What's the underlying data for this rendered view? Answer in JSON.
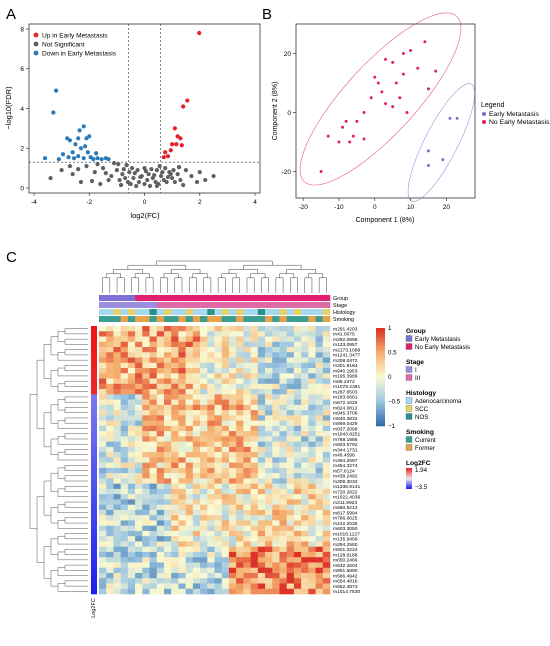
{
  "colors": {
    "up": "#e8202a",
    "ns": "#606060",
    "down": "#2a7ab8",
    "early": "#7e6fd6",
    "noearly": "#e0206e",
    "stage_i": "#9a8ee0",
    "stage_ii": "#e06aa8",
    "hist_adeno": "#a6d8ee",
    "hist_scc": "#e8d26a",
    "hist_nos": "#2a8f86",
    "smoke_current": "#3a9f8f",
    "smoke_former": "#e8a24a",
    "l2fc_high": "#e8202a",
    "l2fc_low": "#2a2ae0"
  },
  "panels": {
    "a": "A",
    "b": "B",
    "c": "C"
  },
  "chart_data": [
    {
      "type": "scatter",
      "id": "volcano",
      "xlabel": "log2(FC)",
      "ylabel": "−log10(FDR)",
      "xlim": [
        -4,
        4
      ],
      "ylim": [
        0,
        8
      ],
      "x_ticks": [
        "-4",
        "-2",
        "0",
        "2",
        "4"
      ],
      "y_ticks": [
        "0",
        "2",
        "4",
        "6",
        "8"
      ],
      "thresholds": {
        "x": [
          -0.58,
          0.58
        ],
        "y": 1.3
      },
      "legend": [
        "Up in Early Metastasis",
        "Not Significant",
        "Down in Early Metastasis"
      ],
      "series": [
        {
          "name": "Up in Early Metastasis",
          "points": [
            [
              1.98,
              7.8
            ],
            [
              1.55,
              4.4
            ],
            [
              1.4,
              4.1
            ],
            [
              1.1,
              3.0
            ],
            [
              1.2,
              2.6
            ],
            [
              1.3,
              2.5
            ],
            [
              1.0,
              2.2
            ],
            [
              1.15,
              2.2
            ],
            [
              1.35,
              2.15
            ],
            [
              0.95,
              1.9
            ],
            [
              0.75,
              1.8
            ],
            [
              0.85,
              1.6
            ],
            [
              0.7,
              1.55
            ]
          ]
        },
        {
          "name": "Down in Early Metastasis",
          "points": [
            [
              -3.2,
              4.9
            ],
            [
              -3.3,
              3.8
            ],
            [
              -2.2,
              3.1
            ],
            [
              -2.35,
              2.9
            ],
            [
              -3.6,
              1.5
            ],
            [
              -2.8,
              2.5
            ],
            [
              -2.1,
              2.5
            ],
            [
              -2.0,
              2.6
            ],
            [
              -2.7,
              2.4
            ],
            [
              -2.4,
              2.5
            ],
            [
              -2.5,
              2.2
            ],
            [
              -2.3,
              2.0
            ],
            [
              -2.15,
              2.1
            ],
            [
              -2.95,
              1.7
            ],
            [
              -2.75,
              1.55
            ],
            [
              -2.55,
              1.5
            ],
            [
              -2.4,
              1.6
            ],
            [
              -2.2,
              1.5
            ],
            [
              -1.95,
              1.55
            ],
            [
              -1.85,
              1.45
            ],
            [
              -1.7,
              1.5
            ],
            [
              -1.55,
              1.45
            ],
            [
              -1.4,
              1.5
            ],
            [
              -1.3,
              1.45
            ],
            [
              -2.05,
              1.8
            ],
            [
              -1.75,
              1.75
            ],
            [
              -3.1,
              1.45
            ],
            [
              -2.6,
              1.8
            ]
          ]
        },
        {
          "name": "Not Significant",
          "points": [
            [
              -3.0,
              0.9
            ],
            [
              -2.6,
              0.7
            ],
            [
              -2.1,
              1.1
            ],
            [
              -1.8,
              0.8
            ],
            [
              -1.5,
              1.0
            ],
            [
              -1.2,
              0.6
            ],
            [
              -1.0,
              0.9
            ],
            [
              -0.9,
              0.4
            ],
            [
              -0.8,
              0.7
            ],
            [
              -0.7,
              0.5
            ],
            [
              -0.6,
              0.3
            ],
            [
              -0.5,
              0.2
            ],
            [
              -0.4,
              0.5
            ],
            [
              -0.3,
              0.1
            ],
            [
              -0.2,
              0.3
            ],
            [
              -0.1,
              0.6
            ],
            [
              0.0,
              0.2
            ],
            [
              0.1,
              0.4
            ],
            [
              0.2,
              0.1
            ],
            [
              0.3,
              0.5
            ],
            [
              0.4,
              0.3
            ],
            [
              0.5,
              0.2
            ],
            [
              0.6,
              0.6
            ],
            [
              0.7,
              0.4
            ],
            [
              0.8,
              0.3
            ],
            [
              0.9,
              0.8
            ],
            [
              1.0,
              0.5
            ],
            [
              1.1,
              0.3
            ],
            [
              1.2,
              0.7
            ],
            [
              1.3,
              0.4
            ],
            [
              1.5,
              0.9
            ],
            [
              1.7,
              0.6
            ],
            [
              1.9,
              0.3
            ],
            [
              2.2,
              0.4
            ],
            [
              2.5,
              0.6
            ],
            [
              -2.3,
              0.3
            ],
            [
              -1.6,
              0.2
            ],
            [
              -1.3,
              0.4
            ],
            [
              -0.95,
              1.2
            ],
            [
              -0.75,
              0.95
            ],
            [
              -0.55,
              0.8
            ],
            [
              -0.45,
              1.0
            ],
            [
              -0.35,
              0.75
            ],
            [
              -0.25,
              0.9
            ],
            [
              -0.15,
              0.55
            ],
            [
              0.05,
              0.85
            ],
            [
              0.15,
              0.7
            ],
            [
              0.25,
              0.95
            ],
            [
              0.35,
              0.65
            ],
            [
              0.45,
              0.9
            ],
            [
              0.55,
              1.1
            ],
            [
              0.65,
              0.8
            ],
            [
              0.75,
              1.0
            ],
            [
              0.85,
              0.55
            ],
            [
              0.95,
              0.7
            ],
            [
              1.05,
              0.9
            ],
            [
              1.25,
              1.05
            ],
            [
              -1.1,
              1.25
            ],
            [
              -0.65,
              1.15
            ],
            [
              0.0,
              1.0
            ],
            [
              -2.7,
              1.1
            ],
            [
              2.0,
              0.8
            ],
            [
              -3.4,
              0.5
            ],
            [
              -0.85,
              0.15
            ],
            [
              0.45,
              0.1
            ],
            [
              1.4,
              0.15
            ],
            [
              -1.9,
              0.35
            ],
            [
              -1.4,
              0.75
            ],
            [
              -1.7,
              1.2
            ],
            [
              -2.4,
              0.95
            ]
          ]
        }
      ]
    },
    {
      "type": "scatter",
      "id": "pca",
      "xlabel": "Component 1 (8%)",
      "ylabel": "Component 2 (8%)",
      "xlim": [
        -22,
        28
      ],
      "ylim": [
        -29,
        30
      ],
      "x_ticks": [
        "-20",
        "-10",
        "0",
        "10",
        "20"
      ],
      "y_ticks": [
        "-20",
        "0",
        "20"
      ],
      "legend_title": "Legend",
      "legend": [
        "Early Metastasis",
        "No Early Metastasis"
      ],
      "series": [
        {
          "name": "Early Metastasis",
          "points": [
            [
              21,
              -2
            ],
            [
              23,
              -2
            ],
            [
              15,
              -13
            ],
            [
              15,
              -18
            ],
            [
              19,
              -16
            ]
          ]
        },
        {
          "name": "No Early Metastasis",
          "points": [
            [
              -15,
              -20
            ],
            [
              -13,
              -8
            ],
            [
              -10,
              -10
            ],
            [
              -9,
              -5
            ],
            [
              -8,
              -3
            ],
            [
              -7,
              -10
            ],
            [
              -6,
              -8
            ],
            [
              -5,
              -3
            ],
            [
              -3,
              -9
            ],
            [
              -3,
              0
            ],
            [
              -1,
              5
            ],
            [
              0,
              12
            ],
            [
              1,
              10
            ],
            [
              2,
              7
            ],
            [
              3,
              3
            ],
            [
              3,
              18
            ],
            [
              5,
              2
            ],
            [
              5,
              17
            ],
            [
              6,
              10
            ],
            [
              7,
              5
            ],
            [
              8,
              13
            ],
            [
              8,
              20
            ],
            [
              9,
              0
            ],
            [
              12,
              15
            ],
            [
              14,
              24
            ],
            [
              15,
              8
            ],
            [
              17,
              14
            ],
            [
              10,
              21
            ]
          ]
        }
      ]
    },
    {
      "type": "heatmap",
      "id": "heatmap",
      "annotation_rows": [
        "Group",
        "Stage",
        "Histology",
        "Smoking"
      ],
      "row_labels": [
        "m291.4203",
        "m41.0075",
        "m292.0896",
        "m133.0957",
        "m2173.1099",
        "m1241.3477",
        "m208.0472",
        "m301.9184",
        "m940.1953",
        "m195.3986",
        "m68.2472",
        "m1078.2381",
        "m287.6503",
        "m183.0661",
        "m672.1025",
        "m824.0812",
        "m945.3706",
        "m840.3832",
        "m869.0429",
        "m937.2098",
        "m1043.8251",
        "m768.1986",
        "m803.5792",
        "m344.1731",
        "m49.4596",
        "m394.2697",
        "m454.3274",
        "m57.6124",
        "m438.2492",
        "m309.3033",
        "m1336.9141",
        "m720.2822",
        "m1022.4036",
        "m211.9923",
        "m660.5213",
        "m817.5994",
        "m786.6625",
        "m242.2035",
        "m603.3050",
        "m1018.1127",
        "m135.9409",
        "m294.2560",
        "m501.3224",
        "m128.9188",
        "m650.2466",
        "m632.2604",
        "m801.5890",
        "m586.4942",
        "m654.4816",
        "m562.4873",
        "m1014.7530"
      ],
      "n_cols": 32,
      "color_scale": {
        "ticks": [
          "1",
          "0.5",
          "0",
          "−0.5",
          "−1"
        ],
        "min": -1,
        "max": 1
      },
      "legends": {
        "group": {
          "title": "Group",
          "items": [
            "Early Metastasis",
            "No Early Metastasis"
          ]
        },
        "stage": {
          "title": "Stage",
          "items": [
            "I",
            "III"
          ]
        },
        "histology": {
          "title": "Histology",
          "items": [
            "Adenocarcinoma",
            "SCC",
            "NOS"
          ]
        },
        "smoking": {
          "title": "Smoking",
          "items": [
            "Current",
            "Former"
          ]
        },
        "log2fc": {
          "title": "Log2FC",
          "max": "1.94",
          "min": "−3.5"
        }
      },
      "log2fc_side_label": "Log2FC"
    }
  ]
}
